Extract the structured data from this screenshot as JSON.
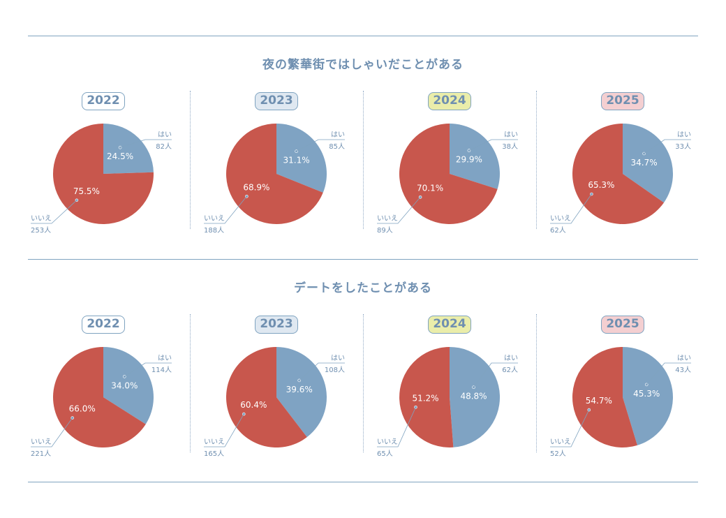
{
  "colors": {
    "yes": "#7fa3c3",
    "no": "#c8574d",
    "line": "#7fa3c0",
    "text": "#6f8fb0",
    "year_bg": [
      "#ffffff",
      "#dfe8f1",
      "#eaedaa",
      "#f4cfd1"
    ]
  },
  "sections": [
    {
      "title": "夜の繁華街ではしゃいだことがある",
      "panels": [
        {
          "year": "2022",
          "yes_pct": 24.5,
          "yes_pct_label": "24.5%",
          "no_pct_label": "75.5%",
          "yes_label": "はい",
          "yes_count": "82人",
          "no_label": "いいえ",
          "no_count": "253人"
        },
        {
          "year": "2023",
          "yes_pct": 31.1,
          "yes_pct_label": "31.1%",
          "no_pct_label": "68.9%",
          "yes_label": "はい",
          "yes_count": "85人",
          "no_label": "いいえ",
          "no_count": "188人"
        },
        {
          "year": "2024",
          "yes_pct": 29.9,
          "yes_pct_label": "29.9%",
          "no_pct_label": "70.1%",
          "yes_label": "はい",
          "yes_count": "38人",
          "no_label": "いいえ",
          "no_count": "89人"
        },
        {
          "year": "2025",
          "yes_pct": 34.7,
          "yes_pct_label": "34.7%",
          "no_pct_label": "65.3%",
          "yes_label": "はい",
          "yes_count": "33人",
          "no_label": "いいえ",
          "no_count": "62人"
        }
      ]
    },
    {
      "title": "デートをしたことがある",
      "panels": [
        {
          "year": "2022",
          "yes_pct": 34.0,
          "yes_pct_label": "34.0%",
          "no_pct_label": "66.0%",
          "yes_label": "はい",
          "yes_count": "114人",
          "no_label": "いいえ",
          "no_count": "221人"
        },
        {
          "year": "2023",
          "yes_pct": 39.6,
          "yes_pct_label": "39.6%",
          "no_pct_label": "60.4%",
          "yes_label": "はい",
          "yes_count": "108人",
          "no_label": "いいえ",
          "no_count": "165人"
        },
        {
          "year": "2024",
          "yes_pct": 48.8,
          "yes_pct_label": "48.8%",
          "no_pct_label": "51.2%",
          "yes_label": "はい",
          "yes_count": "62人",
          "no_label": "いいえ",
          "no_count": "65人"
        },
        {
          "year": "2025",
          "yes_pct": 45.3,
          "yes_pct_label": "45.3%",
          "no_pct_label": "54.7%",
          "yes_label": "はい",
          "yes_count": "43人",
          "no_label": "いいえ",
          "no_count": "52人"
        }
      ]
    }
  ],
  "chart_data": [
    {
      "type": "pie",
      "title": "夜の繁華街ではしゃいだことがある",
      "subtitle": "2022",
      "categories": [
        "はい",
        "いいえ"
      ],
      "values": [
        24.5,
        75.5
      ],
      "counts": [
        82,
        253
      ]
    },
    {
      "type": "pie",
      "title": "夜の繁華街ではしゃいだことがある",
      "subtitle": "2023",
      "categories": [
        "はい",
        "いいえ"
      ],
      "values": [
        31.1,
        68.9
      ],
      "counts": [
        85,
        188
      ]
    },
    {
      "type": "pie",
      "title": "夜の繁華街ではしゃいだことがある",
      "subtitle": "2024",
      "categories": [
        "はい",
        "いいえ"
      ],
      "values": [
        29.9,
        70.1
      ],
      "counts": [
        38,
        89
      ]
    },
    {
      "type": "pie",
      "title": "夜の繁華街ではしゃいだことがある",
      "subtitle": "2025",
      "categories": [
        "はい",
        "いいえ"
      ],
      "values": [
        34.7,
        65.3
      ],
      "counts": [
        33,
        62
      ]
    },
    {
      "type": "pie",
      "title": "デートをしたことがある",
      "subtitle": "2022",
      "categories": [
        "はい",
        "いいえ"
      ],
      "values": [
        34.0,
        66.0
      ],
      "counts": [
        114,
        221
      ]
    },
    {
      "type": "pie",
      "title": "デートをしたことがある",
      "subtitle": "2023",
      "categories": [
        "はい",
        "いいえ"
      ],
      "values": [
        39.6,
        60.4
      ],
      "counts": [
        108,
        165
      ]
    },
    {
      "type": "pie",
      "title": "デートをしたことがある",
      "subtitle": "2024",
      "categories": [
        "はい",
        "いいえ"
      ],
      "values": [
        48.8,
        51.2
      ],
      "counts": [
        62,
        65
      ]
    },
    {
      "type": "pie",
      "title": "デートをしたことがある",
      "subtitle": "2025",
      "categories": [
        "はい",
        "いいえ"
      ],
      "values": [
        45.3,
        54.7
      ],
      "counts": [
        43,
        52
      ]
    }
  ]
}
